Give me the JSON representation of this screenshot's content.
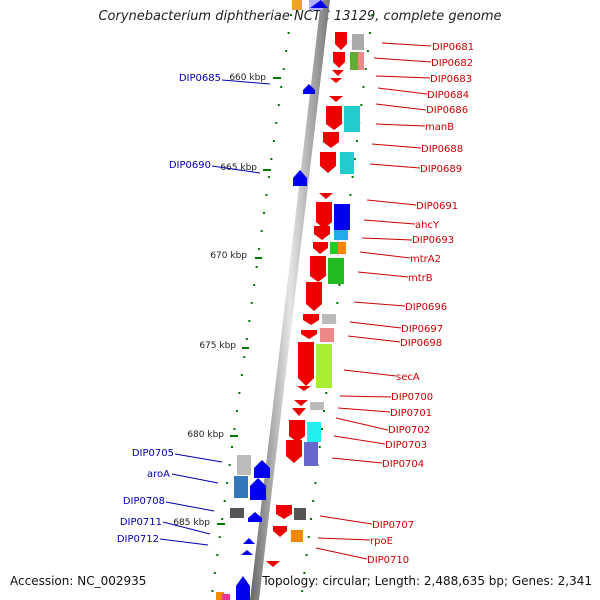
{
  "title": "Corynebacterium diphtheriae NCTC 13129, complete genome",
  "accession": "Accession: NC_002935",
  "summary": "Topology: circular; Length: 2,488,635 bp; Genes: 2,341",
  "colors": {
    "label_right": "#cc0000",
    "label_left": "#0000aa",
    "tick": "#007700",
    "backbone": "#888888"
  },
  "scale_labels": [
    "660 kbp",
    "665 kbp",
    "670 kbp",
    "675 kbp",
    "680 kbp",
    "685 kbp"
  ],
  "right_labels": [
    "DIP0681",
    "DIP0682",
    "DIP0683",
    "DIP0684",
    "DIP0686",
    "manB",
    "DIP0688",
    "DIP0689",
    "DIP0691",
    "ahcY",
    "DIP0693",
    "mtrA2",
    "mtrB",
    "DIP0696",
    "DIP0697",
    "DIP0698",
    "secA",
    "DIP0700",
    "DIP0701",
    "DIP0702",
    "DIP0703",
    "DIP0704",
    "DIP0707",
    "rpoE",
    "DIP0710"
  ],
  "left_labels": [
    "DIP0685",
    "DIP0690",
    "DIP0705",
    "aroA",
    "DIP0708",
    "DIP0711",
    "DIP0712"
  ]
}
